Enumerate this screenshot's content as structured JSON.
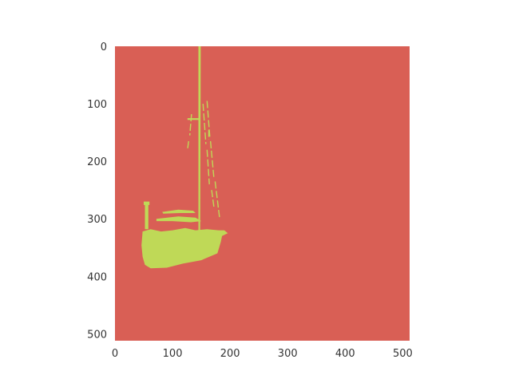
{
  "chart_data": {
    "type": "heatmap",
    "description_kind": "binary segmentation mask (imshow)",
    "title": "",
    "xlabel": "",
    "ylabel": "",
    "xlim": [
      0,
      512
    ],
    "ylim": [
      512,
      0
    ],
    "x_ticks": [
      0,
      100,
      200,
      300,
      400,
      500
    ],
    "y_ticks": [
      0,
      100,
      200,
      300,
      400,
      500
    ],
    "x_tick_labels": [
      "0",
      "100",
      "200",
      "300",
      "400",
      "500"
    ],
    "y_tick_labels": [
      "0",
      "100",
      "200",
      "300",
      "400",
      "500"
    ],
    "grid": false,
    "legend": "none",
    "colors": {
      "background_class": "#d95f55",
      "foreground_class": "#bfd957"
    },
    "mask_regions": {
      "mast": [
        [
          145,
          0
        ],
        [
          149,
          0
        ],
        [
          148,
          330
        ],
        [
          145,
          330
        ]
      ],
      "hull": [
        [
          48,
          322
        ],
        [
          62,
          318
        ],
        [
          80,
          322
        ],
        [
          100,
          320
        ],
        [
          122,
          316
        ],
        [
          140,
          320
        ],
        [
          160,
          318
        ],
        [
          180,
          320
        ],
        [
          190,
          320
        ],
        [
          196,
          325
        ],
        [
          186,
          330
        ],
        [
          184,
          340
        ],
        [
          178,
          360
        ],
        [
          150,
          372
        ],
        [
          118,
          378
        ],
        [
          90,
          385
        ],
        [
          62,
          386
        ],
        [
          52,
          380
        ],
        [
          48,
          366
        ],
        [
          46,
          346
        ]
      ],
      "cabin_top": [
        [
          72,
          300
        ],
        [
          110,
          296
        ],
        [
          140,
          298
        ],
        [
          150,
          304
        ],
        [
          132,
          306
        ],
        [
          100,
          304
        ],
        [
          72,
          304
        ]
      ],
      "boom": [
        [
          82,
          288
        ],
        [
          110,
          284
        ],
        [
          136,
          286
        ],
        [
          140,
          290
        ],
        [
          112,
          290
        ],
        [
          84,
          291
        ]
      ],
      "stanchion": [
        [
          52,
          272
        ],
        [
          58,
          272
        ],
        [
          58,
          318
        ],
        [
          52,
          318
        ]
      ],
      "stanchion_top": [
        [
          50,
          270
        ],
        [
          60,
          270
        ],
        [
          60,
          276
        ],
        [
          50,
          276
        ]
      ],
      "mast_spreader": [
        [
          126,
          125
        ],
        [
          145,
          125
        ],
        [
          145,
          128
        ],
        [
          126,
          128
        ]
      ],
      "forestay_segments": [
        [
          [
            160,
            95
          ],
          [
            165,
            160
          ]
        ],
        [
          [
            166,
            165
          ],
          [
            172,
            230
          ]
        ],
        [
          [
            174,
            235
          ],
          [
            182,
            300
          ]
        ],
        [
          [
            153,
            100
          ],
          [
            158,
            170
          ]
        ],
        [
          [
            160,
            180
          ],
          [
            164,
            240
          ]
        ],
        [
          [
            168,
            250
          ],
          [
            172,
            280
          ]
        ],
        [
          [
            133,
            118
          ],
          [
            130,
            155
          ]
        ],
        [
          [
            128,
            165
          ],
          [
            126,
            180
          ]
        ],
        [
          [
            163,
            145
          ],
          [
            163,
            162
          ]
        ]
      ]
    }
  }
}
